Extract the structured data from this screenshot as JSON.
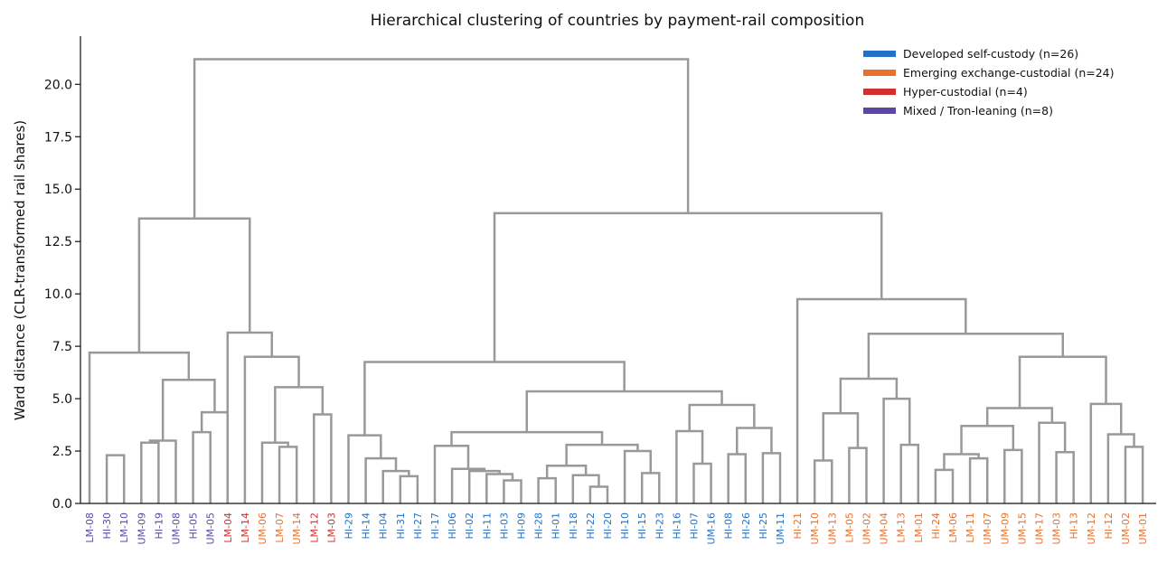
{
  "chart_data": {
    "type": "dendrogram",
    "title": "Hierarchical clustering of countries by payment-rail composition",
    "xlabel": "",
    "ylabel": "Ward distance (CLR-transformed rail shares)",
    "ylim": [
      0,
      22.3
    ],
    "yticks": [
      "0.0",
      "2.5",
      "5.0",
      "7.5",
      "10.0",
      "12.5",
      "15.0",
      "17.5",
      "20.0"
    ],
    "legend_position": "top-right",
    "groups": [
      {
        "key": "dev",
        "label": "Developed self-custody (n=26)",
        "color": "#2472c8"
      },
      {
        "key": "emg",
        "label": "Emerging exchange-custodial (n=24)",
        "color": "#e8712c"
      },
      {
        "key": "hyp",
        "label": "Hyper-custodial (n=4)",
        "color": "#d32f2f"
      },
      {
        "key": "mix",
        "label": "Mixed / Tron-leaning (n=8)",
        "color": "#5e45a8"
      }
    ],
    "leaves": [
      {
        "label": "LM-08",
        "group": "mix"
      },
      {
        "label": "HI-30",
        "group": "mix"
      },
      {
        "label": "LM-10",
        "group": "mix"
      },
      {
        "label": "UM-09",
        "group": "mix"
      },
      {
        "label": "HI-19",
        "group": "mix"
      },
      {
        "label": "UM-08",
        "group": "mix"
      },
      {
        "label": "HI-05",
        "group": "mix"
      },
      {
        "label": "UM-05",
        "group": "mix"
      },
      {
        "label": "LM-04",
        "group": "hyp"
      },
      {
        "label": "LM-14",
        "group": "hyp"
      },
      {
        "label": "UM-06",
        "group": "emg"
      },
      {
        "label": "LM-07",
        "group": "emg"
      },
      {
        "label": "UM-14",
        "group": "emg"
      },
      {
        "label": "LM-12",
        "group": "hyp"
      },
      {
        "label": "LM-03",
        "group": "hyp"
      },
      {
        "label": "HI-29",
        "group": "dev"
      },
      {
        "label": "HI-14",
        "group": "dev"
      },
      {
        "label": "HI-04",
        "group": "dev"
      },
      {
        "label": "HI-31",
        "group": "dev"
      },
      {
        "label": "HI-27",
        "group": "dev"
      },
      {
        "label": "HI-17",
        "group": "dev"
      },
      {
        "label": "HI-06",
        "group": "dev"
      },
      {
        "label": "HI-02",
        "group": "dev"
      },
      {
        "label": "HI-11",
        "group": "dev"
      },
      {
        "label": "HI-03",
        "group": "dev"
      },
      {
        "label": "HI-09",
        "group": "dev"
      },
      {
        "label": "HI-28",
        "group": "dev"
      },
      {
        "label": "HI-01",
        "group": "dev"
      },
      {
        "label": "HI-18",
        "group": "dev"
      },
      {
        "label": "HI-22",
        "group": "dev"
      },
      {
        "label": "HI-20",
        "group": "dev"
      },
      {
        "label": "HI-10",
        "group": "dev"
      },
      {
        "label": "HI-15",
        "group": "dev"
      },
      {
        "label": "HI-23",
        "group": "dev"
      },
      {
        "label": "HI-16",
        "group": "dev"
      },
      {
        "label": "HI-07",
        "group": "dev"
      },
      {
        "label": "UM-16",
        "group": "dev"
      },
      {
        "label": "HI-08",
        "group": "dev"
      },
      {
        "label": "HI-26",
        "group": "dev"
      },
      {
        "label": "HI-25",
        "group": "dev"
      },
      {
        "label": "UM-11",
        "group": "dev"
      },
      {
        "label": "HI-21",
        "group": "emg"
      },
      {
        "label": "UM-10",
        "group": "emg"
      },
      {
        "label": "UM-13",
        "group": "emg"
      },
      {
        "label": "LM-05",
        "group": "emg"
      },
      {
        "label": "UM-02",
        "group": "emg"
      },
      {
        "label": "UM-04",
        "group": "emg"
      },
      {
        "label": "LM-13",
        "group": "emg"
      },
      {
        "label": "LM-01",
        "group": "emg"
      },
      {
        "label": "HI-24",
        "group": "emg"
      },
      {
        "label": "LM-06",
        "group": "emg"
      },
      {
        "label": "LM-11",
        "group": "emg"
      },
      {
        "label": "UM-07",
        "group": "emg"
      },
      {
        "label": "UM-09",
        "group": "emg"
      },
      {
        "label": "UM-15",
        "group": "emg"
      },
      {
        "label": "UM-17",
        "group": "emg"
      },
      {
        "label": "UM-03",
        "group": "emg"
      },
      {
        "label": "HI-13",
        "group": "emg"
      },
      {
        "label": "UM-12",
        "group": "emg"
      },
      {
        "label": "HI-12",
        "group": "emg"
      },
      {
        "label": "UM-02",
        "group": "emg"
      },
      {
        "label": "UM-01",
        "group": "emg"
      }
    ],
    "merges": [
      [
        1,
        2,
        2.3
      ],
      [
        3,
        4,
        2.9
      ],
      [
        5,
        "N1",
        3.0
      ],
      [
        6,
        7,
        3.4
      ],
      [
        8,
        "N3",
        4.35
      ],
      [
        "N2",
        "N4",
        5.9
      ],
      [
        0,
        "N5",
        7.2
      ],
      [
        11,
        12,
        2.7
      ],
      [
        10,
        "N7",
        2.9
      ],
      [
        13,
        14,
        4.25
      ],
      [
        "N8",
        "N9",
        5.55
      ],
      [
        9,
        "N10",
        7.0
      ],
      [
        8,
        "N11",
        8.15
      ],
      [
        "N6",
        "N12",
        13.6
      ],
      [
        18,
        19,
        1.3
      ],
      [
        17,
        "N14",
        1.55
      ],
      [
        16,
        "N15",
        2.15
      ],
      [
        15,
        "N16",
        3.25
      ],
      [
        24,
        25,
        1.1
      ],
      [
        23,
        "N18",
        1.4
      ],
      [
        22,
        "N19",
        1.55
      ],
      [
        21,
        "N20",
        1.65
      ],
      [
        20,
        "N21",
        2.75
      ],
      [
        29,
        30,
        0.8
      ],
      [
        28,
        "N23",
        1.35
      ],
      [
        26,
        27,
        1.2
      ],
      [
        "N25",
        "N24",
        1.8
      ],
      [
        32,
        33,
        1.45
      ],
      [
        31,
        "N27",
        2.5
      ],
      [
        "N26",
        "N28",
        2.8
      ],
      [
        "N22",
        "N29",
        3.4
      ],
      [
        35,
        36,
        1.9
      ],
      [
        34,
        "N31",
        3.45
      ],
      [
        37,
        38,
        2.35
      ],
      [
        39,
        40,
        2.4
      ],
      [
        "N33",
        "N34",
        3.6
      ],
      [
        "N32",
        "N35",
        4.7
      ],
      [
        "N30",
        "N36",
        5.35
      ],
      [
        "N17",
        "N37",
        6.75
      ],
      [
        42,
        43,
        2.05
      ],
      [
        44,
        45,
        2.65
      ],
      [
        "N39",
        "N40",
        4.3
      ],
      [
        47,
        48,
        2.8
      ],
      [
        46,
        "N42",
        5.0
      ],
      [
        "N41",
        "N43",
        5.95
      ],
      [
        49,
        50,
        1.6
      ],
      [
        51,
        52,
        2.15
      ],
      [
        "N45",
        "N46",
        2.35
      ],
      [
        53,
        54,
        2.55
      ],
      [
        "N47",
        "N48",
        3.7
      ],
      [
        56,
        57,
        2.45
      ],
      [
        55,
        "N50",
        3.85
      ],
      [
        "N49",
        "N51",
        4.55
      ],
      [
        60,
        61,
        2.7
      ],
      [
        59,
        "N53",
        3.3
      ],
      [
        58,
        "N54",
        4.75
      ],
      [
        "N52",
        "N55",
        7.0
      ],
      [
        "N44",
        "N56",
        8.1
      ],
      [
        41,
        "N57",
        9.75
      ],
      [
        "N38",
        "N58",
        13.85
      ],
      [
        "N13",
        "N59",
        21.2
      ]
    ]
  }
}
